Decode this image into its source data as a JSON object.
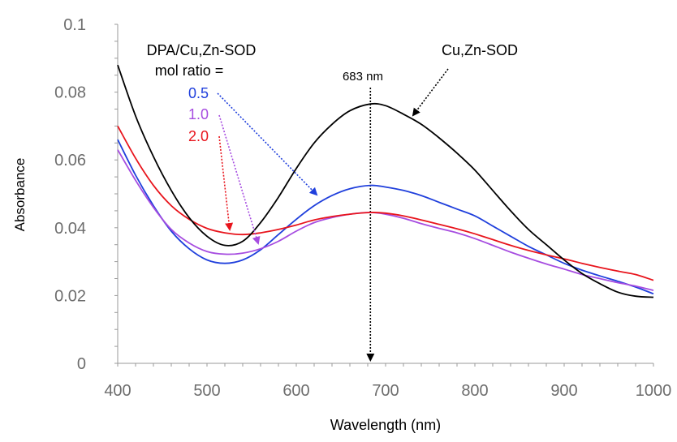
{
  "chart_data": {
    "type": "line",
    "xlabel": "Wavelength (nm)",
    "ylabel": "Absorbance",
    "xlim": [
      400,
      1000
    ],
    "ylim": [
      0,
      0.1
    ],
    "x_ticks": [
      "400",
      "500",
      "600",
      "700",
      "800",
      "900",
      "1000"
    ],
    "y_ticks": [
      "0",
      "0.02",
      "0.04",
      "0.06",
      "0.08",
      "0.1"
    ],
    "grid": false,
    "legend": "none",
    "series": [
      {
        "name": "Cu,Zn-SOD",
        "color": "#000000",
        "x": [
          400,
          420,
          440,
          460,
          480,
          500,
          520,
          540,
          560,
          580,
          600,
          620,
          640,
          660,
          683,
          700,
          720,
          740,
          760,
          780,
          800,
          820,
          840,
          860,
          880,
          900,
          920,
          940,
          960,
          980,
          1000
        ],
        "y": [
          0.088,
          0.073,
          0.061,
          0.051,
          0.043,
          0.0375,
          0.0348,
          0.036,
          0.0415,
          0.049,
          0.0575,
          0.065,
          0.0705,
          0.0745,
          0.0765,
          0.076,
          0.0735,
          0.0705,
          0.0665,
          0.062,
          0.057,
          0.051,
          0.045,
          0.0395,
          0.035,
          0.0305,
          0.0265,
          0.0235,
          0.021,
          0.0198,
          0.0195
        ]
      },
      {
        "name": "0.5",
        "color": "#1f3fdc",
        "x": [
          400,
          420,
          440,
          460,
          480,
          500,
          520,
          540,
          560,
          580,
          600,
          620,
          640,
          660,
          683,
          700,
          720,
          740,
          760,
          780,
          800,
          820,
          840,
          860,
          880,
          900,
          920,
          940,
          960,
          980,
          1000
        ],
        "y": [
          0.066,
          0.0555,
          0.0465,
          0.039,
          0.0338,
          0.0305,
          0.0295,
          0.0305,
          0.0335,
          0.038,
          0.0425,
          0.0465,
          0.0495,
          0.0515,
          0.0525,
          0.052,
          0.051,
          0.0495,
          0.0475,
          0.0455,
          0.0435,
          0.0405,
          0.0375,
          0.0345,
          0.032,
          0.0295,
          0.0275,
          0.0258,
          0.0242,
          0.0225,
          0.0205
        ]
      },
      {
        "name": "1.0",
        "color": "#a64ce0",
        "x": [
          400,
          420,
          440,
          460,
          480,
          500,
          520,
          540,
          560,
          580,
          600,
          620,
          640,
          660,
          683,
          700,
          720,
          740,
          760,
          780,
          800,
          820,
          840,
          860,
          880,
          900,
          920,
          940,
          960,
          980,
          1000
        ],
        "y": [
          0.063,
          0.054,
          0.046,
          0.0395,
          0.0355,
          0.033,
          0.0322,
          0.0325,
          0.0338,
          0.036,
          0.039,
          0.0415,
          0.043,
          0.044,
          0.0445,
          0.044,
          0.0428,
          0.0412,
          0.0398,
          0.0385,
          0.0368,
          0.0348,
          0.0328,
          0.031,
          0.0293,
          0.0278,
          0.0262,
          0.025,
          0.0238,
          0.0228,
          0.0215
        ]
      },
      {
        "name": "2.0",
        "color": "#e8141c",
        "x": [
          400,
          420,
          440,
          460,
          480,
          500,
          520,
          540,
          560,
          580,
          600,
          620,
          640,
          660,
          683,
          700,
          720,
          740,
          760,
          780,
          800,
          820,
          840,
          860,
          880,
          900,
          920,
          940,
          960,
          980,
          1000
        ],
        "y": [
          0.07,
          0.0605,
          0.0525,
          0.0465,
          0.0425,
          0.0398,
          0.0385,
          0.038,
          0.0385,
          0.0395,
          0.0408,
          0.0423,
          0.0433,
          0.044,
          0.0445,
          0.0443,
          0.0435,
          0.0423,
          0.041,
          0.0397,
          0.0382,
          0.0365,
          0.0348,
          0.0333,
          0.032,
          0.0308,
          0.0295,
          0.0283,
          0.0272,
          0.0262,
          0.0245
        ]
      }
    ],
    "annotations": {
      "ratio_heading_line1": "DPA/Cu,Zn-SOD",
      "ratio_heading_line2": "mol ratio =",
      "peak_label": "683 nm",
      "peak_x": 683,
      "enzyme_label": "Cu,Zn-SOD"
    }
  }
}
